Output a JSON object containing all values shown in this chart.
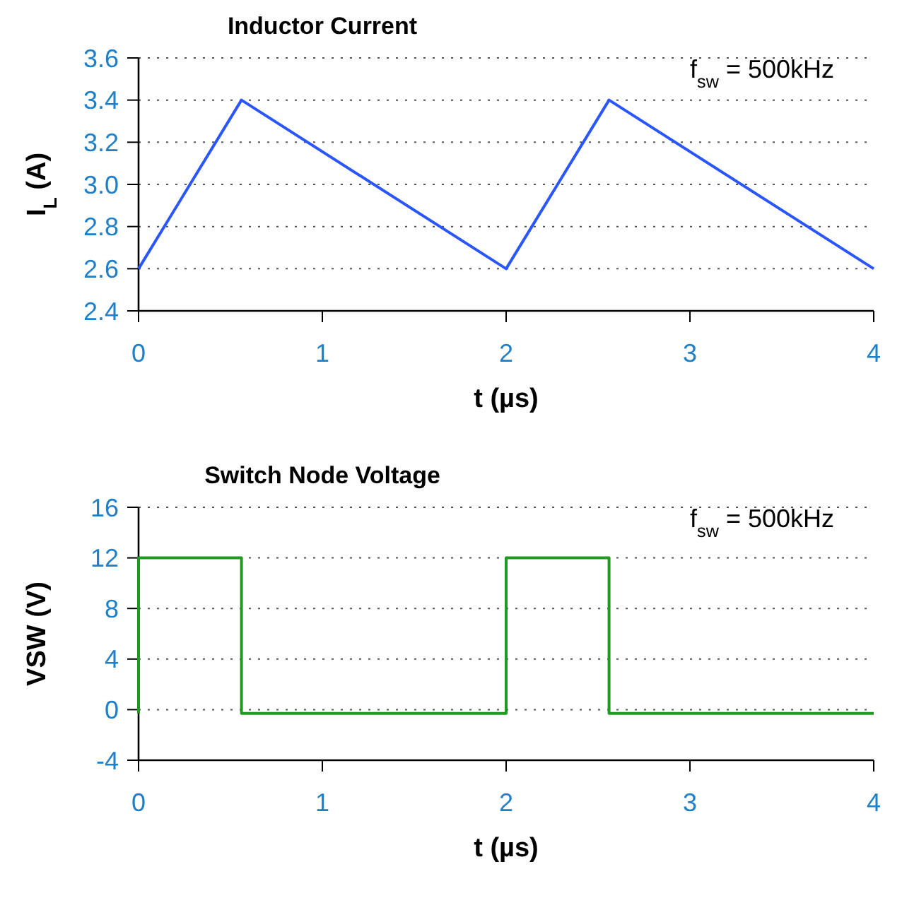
{
  "chart_data": [
    {
      "type": "line",
      "title": "Inductor Current",
      "xlabel": "t (µs)",
      "ylabel": "I$_{L}$ (A)",
      "annotations": [
        "f$_{sw}$ = 500kHz"
      ],
      "x": [
        0,
        0.56,
        2,
        2.56,
        4
      ],
      "series": [
        {
          "color": "#2a56ff",
          "values": [
            2.6,
            3.4,
            2.6,
            3.4,
            2.6
          ]
        }
      ],
      "xlim": [
        0,
        4
      ],
      "xticks": [
        0,
        1,
        2,
        3,
        4
      ],
      "ylim": [
        2.4,
        3.6
      ],
      "yticks": [
        2.4,
        2.6,
        2.8,
        {
          "value": 3,
          "label": "3.0"
        },
        3.2,
        3.4,
        3.6
      ],
      "grid": "y"
    },
    {
      "type": "line",
      "title": "Switch Node Voltage",
      "xlabel": "t (µs)",
      "ylabel": "VSW (V)",
      "annotations": [
        "f$_{sw}$ = 500kHz"
      ],
      "x": [
        0,
        0,
        0.56,
        0.56,
        2,
        2,
        2.56,
        2.56,
        4
      ],
      "series": [
        {
          "color": "#1e9a1e",
          "values": [
            -0.3,
            12,
            12,
            -0.3,
            -0.3,
            12,
            12,
            -0.3,
            -0.3
          ]
        }
      ],
      "xlim": [
        0,
        4
      ],
      "xticks": [
        0,
        1,
        2,
        3,
        4
      ],
      "ylim": [
        -4,
        16
      ],
      "yticks": [
        -4,
        0,
        4,
        8,
        12,
        16
      ],
      "grid": "y"
    }
  ]
}
